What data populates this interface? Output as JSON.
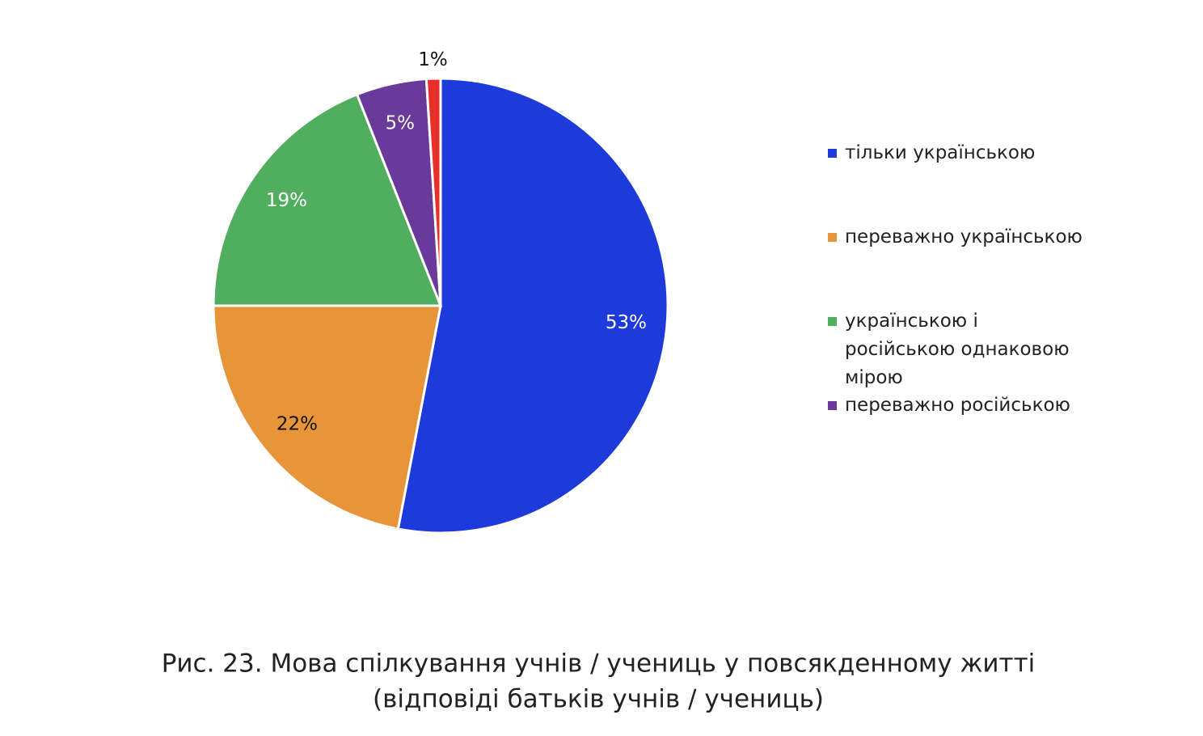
{
  "chart_data": {
    "type": "pie",
    "categories": [
      "тільки українською",
      "переважно українською",
      "українською і російською однаковою мірою",
      "переважно російською",
      null
    ],
    "values": [
      53,
      22,
      19,
      5,
      1
    ],
    "value_labels": [
      "53%",
      "22%",
      "19%",
      "5%",
      "1%"
    ],
    "colors": [
      "#1f3adb",
      "#e8953a",
      "#52ae5f",
      "#6a3a9a",
      "#e8302a"
    ],
    "legend": "right",
    "caption": [
      "Рис. 23. Мова спілкування учнів / учениць у повсякденному житті",
      "(відповіді батьків учнів / учениць)"
    ]
  }
}
